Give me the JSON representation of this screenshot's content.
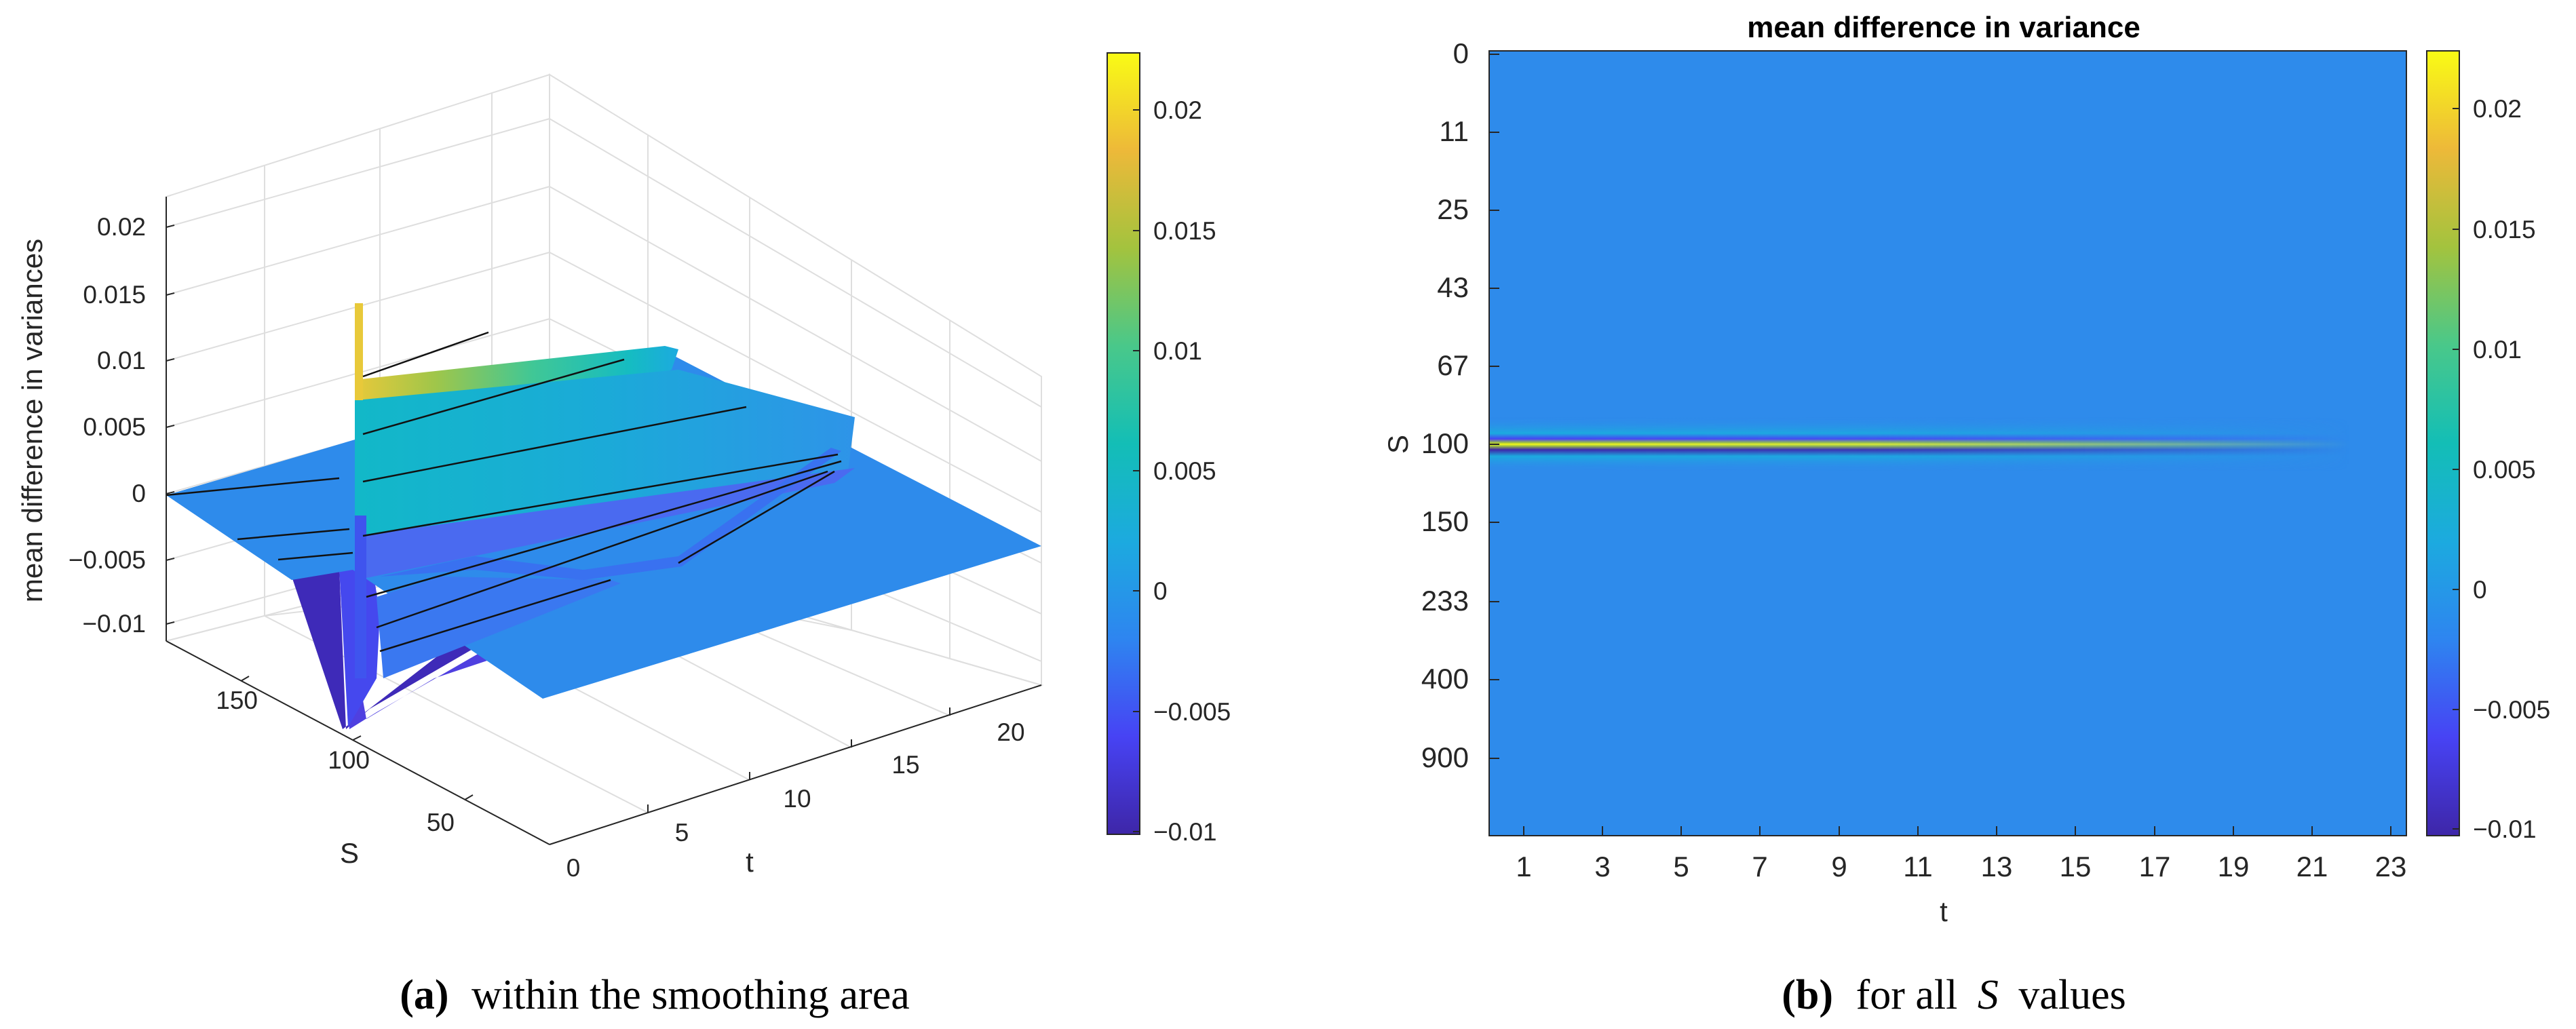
{
  "colors": {
    "parula": [
      "#3E26A8",
      "#4743F4",
      "#2E85F0",
      "#1CAADF",
      "#13BEB6",
      "#49C88A",
      "#A3C33E",
      "#EDB939",
      "#F9FB15"
    ],
    "flat": "#2E8BEB"
  },
  "captions": {
    "a_label": "(a)",
    "a_text": "within the smoothing area",
    "b_label": "(b)",
    "b_text_pre": "for all",
    "b_text_var": "S",
    "b_text_post": "values"
  },
  "chart_data": [
    {
      "type": "surface",
      "title": "",
      "xlabel": "t",
      "ylabel": "S",
      "zlabel": "mean difference in variances",
      "x_ticks": [
        "0",
        "5",
        "10",
        "15",
        "20"
      ],
      "y_ticks": [
        "50",
        "100",
        "150"
      ],
      "z_ticks": [
        "0.02",
        "0.015",
        "0.01",
        "0.005",
        "0",
        "−0.005",
        "−0.01"
      ],
      "zlim": [
        -0.011,
        0.022
      ],
      "colorbar_ticks": [
        "0.02",
        "0.015",
        "0.01",
        "0.005",
        "0",
        "−0.005",
        "−0.01"
      ],
      "colorbar_range": [
        -0.0105,
        0.0222
      ]
    },
    {
      "type": "heatmap",
      "title": "mean difference in variance",
      "xlabel": "t",
      "ylabel": "S",
      "x_ticks": [
        "1",
        "3",
        "5",
        "7",
        "9",
        "11",
        "13",
        "15",
        "17",
        "19",
        "21",
        "23"
      ],
      "y_ticks": [
        "0",
        "11",
        "25",
        "43",
        "67",
        "100",
        "150",
        "233",
        "400",
        "900"
      ],
      "colorbar_ticks": [
        "0.02",
        "0.015",
        "0.01",
        "0.005",
        "0",
        "−0.005",
        "−0.01"
      ],
      "colorbar_range": [
        -0.0105,
        0.0222
      ]
    }
  ]
}
